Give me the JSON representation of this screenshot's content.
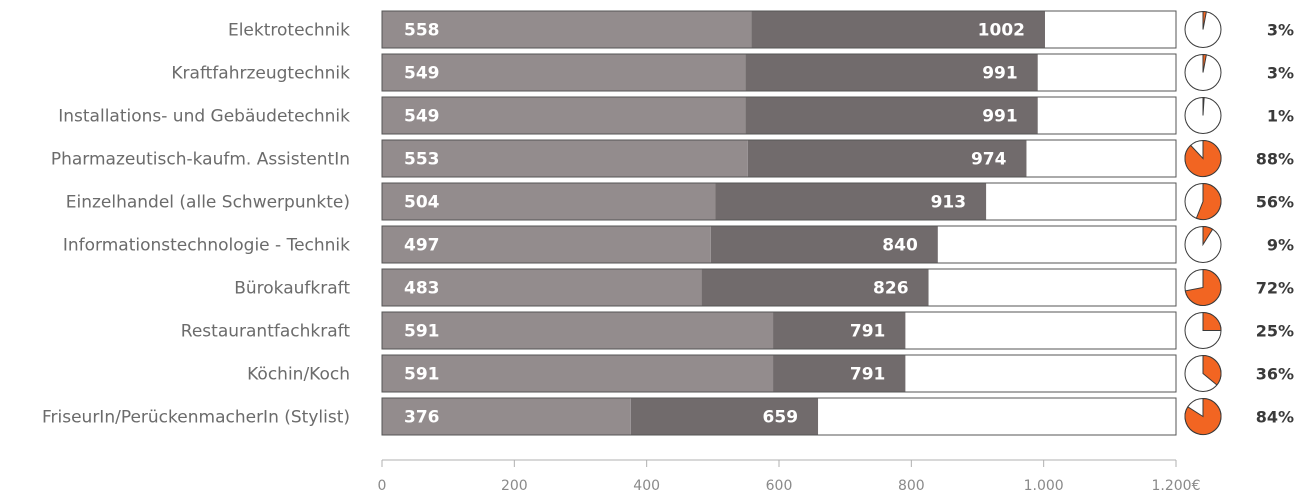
{
  "chart_data": {
    "type": "bar",
    "categories": [
      "Elektrotechnik",
      "Kraftfahrzeugtechnik",
      "Installations- und Gebäudetechnik",
      "Pharmazeutisch-kaufm. AssistentIn",
      "Einzelhandel (alle Schwerpunkte)",
      "Informationstechnologie - Technik",
      "Bürokaufkraft",
      "Restaurantfachkraft",
      "Köchin/Koch",
      "FriseurIn/PerückenmacherIn (Stylist)"
    ],
    "series": [
      {
        "values": [
          558,
          549,
          549,
          553,
          504,
          497,
          483,
          591,
          591,
          376
        ]
      },
      {
        "values": [
          1002,
          991,
          991,
          974,
          913,
          840,
          826,
          791,
          791,
          659
        ]
      }
    ],
    "series1_labels": [
      "558",
      "549",
      "549",
      "553",
      "504",
      "497",
      "483",
      "591",
      "591",
      "376"
    ],
    "series2_labels": [
      "1002",
      "991",
      "991",
      "974",
      "913",
      "840",
      "826",
      "791",
      "791",
      "659"
    ],
    "pie_values": [
      3,
      3,
      1,
      88,
      56,
      9,
      72,
      25,
      36,
      84
    ],
    "pie_labels": [
      "3%",
      "3%",
      "1%",
      "88%",
      "56%",
      "9%",
      "72%",
      "25%",
      "36%",
      "84%"
    ],
    "xlim": [
      0,
      1200
    ],
    "x_ticks": [
      0,
      200,
      400,
      600,
      800,
      1000,
      1200
    ],
    "x_tick_labels": [
      "0",
      "200",
      "400",
      "600",
      "800",
      "1.000",
      "1.200€"
    ],
    "title": "",
    "xlabel": "",
    "ylabel": "",
    "colors": {
      "series1": "#938c8d",
      "series2": "#716b6c",
      "pie_fill": "#f26522",
      "frame": "#555555",
      "axis": "#b0b0b0"
    }
  }
}
